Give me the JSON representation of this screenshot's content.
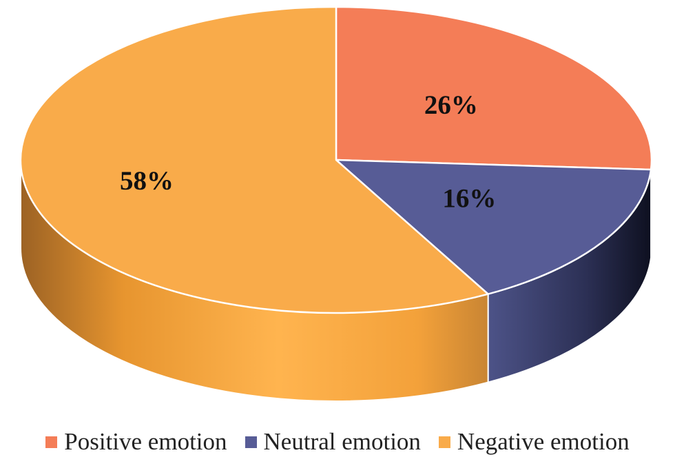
{
  "chart_data": {
    "type": "pie",
    "style": "3d",
    "title": "",
    "legend_position": "bottom",
    "slices": [
      {
        "name": "Positive emotion",
        "value": 26,
        "label": "26%",
        "color": "#F47D57"
      },
      {
        "name": "Neutral emotion",
        "value": 16,
        "label": "16%",
        "color": "#575C96"
      },
      {
        "name": "Negative emotion",
        "value": 58,
        "label": "58%",
        "color": "#F9AB4A"
      }
    ]
  }
}
